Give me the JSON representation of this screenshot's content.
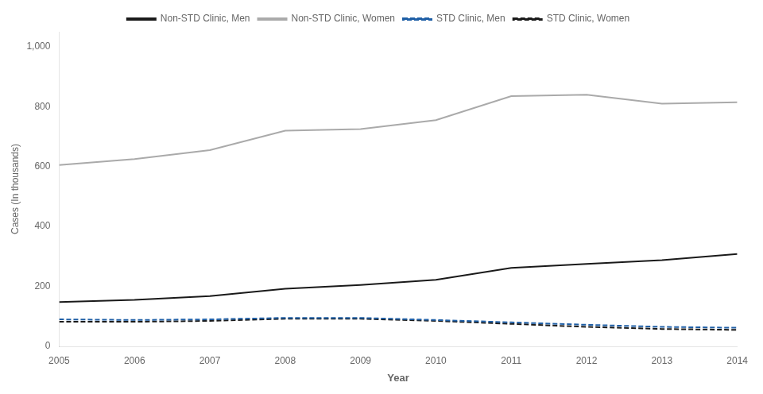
{
  "chart_data": {
    "type": "line",
    "x": [
      2005,
      2006,
      2007,
      2008,
      2009,
      2010,
      2011,
      2012,
      2013,
      2014
    ],
    "series": [
      {
        "name": "Non-STD Clinic, Men",
        "color": "#1a1a1a",
        "line_style": "solid",
        "values": [
          148,
          155,
          168,
          192,
          205,
          222,
          262,
          275,
          288,
          308
        ]
      },
      {
        "name": "Non-STD Clinic, Women",
        "color": "#aaaaaa",
        "line_style": "solid",
        "values": [
          605,
          625,
          655,
          720,
          725,
          755,
          835,
          840,
          810,
          815
        ]
      },
      {
        "name": "STD Clinic, Men",
        "color": "#1f5fa6",
        "line_style": "dashed",
        "values": [
          90,
          88,
          90,
          95,
          95,
          88,
          80,
          72,
          65,
          62
        ]
      },
      {
        "name": "STD Clinic, Women",
        "color": "#1a1a1a",
        "line_style": "dashed",
        "values": [
          82,
          82,
          85,
          92,
          92,
          85,
          75,
          65,
          58,
          55
        ]
      }
    ],
    "xlabel": "Year",
    "ylabel": "Cases (In thousands)",
    "xlim": [
      2005,
      2014
    ],
    "xticks": [
      2005,
      2006,
      2007,
      2008,
      2009,
      2010,
      2011,
      2012,
      2013,
      2014
    ],
    "ylim": [
      0,
      1050
    ],
    "yticks": [
      0,
      200,
      400,
      600,
      800,
      {
        "value": 1000,
        "label": "1,000"
      }
    ],
    "grid": false,
    "legend": "top"
  }
}
